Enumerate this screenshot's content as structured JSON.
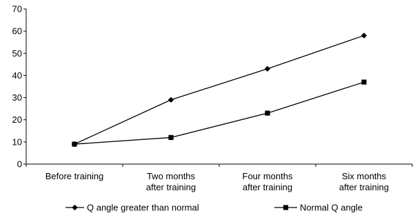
{
  "chart_data": {
    "type": "line",
    "categories": [
      [
        "Before training"
      ],
      [
        "Two months",
        "after training"
      ],
      [
        "Four months",
        "after training"
      ],
      [
        "Six months",
        "after training"
      ]
    ],
    "series": [
      {
        "name": "Q angle greater than normal",
        "marker": "diamond",
        "values": [
          9,
          29,
          43,
          58
        ]
      },
      {
        "name": "Normal Q angle",
        "marker": "square",
        "values": [
          9,
          12,
          23,
          37
        ]
      }
    ],
    "ylim": [
      0,
      70
    ],
    "yticks": [
      0,
      10,
      20,
      30,
      40,
      50,
      60,
      70
    ],
    "grid": false,
    "legend": "bottom",
    "line_color": "#000000"
  }
}
